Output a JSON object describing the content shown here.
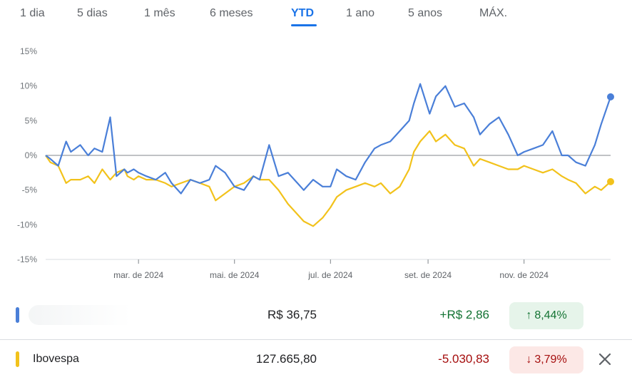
{
  "tabs": [
    {
      "label": "1 dia",
      "active": false
    },
    {
      "label": "5 dias",
      "active": false
    },
    {
      "label": "1 mês",
      "active": false
    },
    {
      "label": "6 meses",
      "active": false
    },
    {
      "label": "YTD",
      "active": true
    },
    {
      "label": "1 ano",
      "active": false
    },
    {
      "label": "5 anos",
      "active": false
    },
    {
      "label": "MÁX.",
      "active": false
    }
  ],
  "colors": {
    "series_1": "#4a7fd8",
    "series_2": "#f2c21b",
    "up": "#137333",
    "down": "#a50e0e",
    "accent": "#1a73e8"
  },
  "chart_data": {
    "type": "line",
    "ylim": [
      -15,
      15
    ],
    "y_ticks": [
      15,
      10,
      5,
      0,
      -5,
      -10,
      -15
    ],
    "y_tick_labels": [
      "15%",
      "10%",
      "5%",
      "0%",
      "-5%",
      "-10%",
      "-15%"
    ],
    "xlim": [
      "2024-01-02",
      "2024-12-26"
    ],
    "x_ticks": [
      "2024-03-01",
      "2024-05-01",
      "2024-07-01",
      "2024-09-01",
      "2024-11-01"
    ],
    "x_tick_labels": [
      "mar. de 2024",
      "mai. de 2024",
      "jul. de 2024",
      "set. de 2024",
      "nov. de 2024"
    ],
    "baseline": 0,
    "series": [
      {
        "color": "#4a7fd8",
        "x": [
          "2024-01-02",
          "2024-01-05",
          "2024-01-10",
          "2024-01-15",
          "2024-01-18",
          "2024-01-24",
          "2024-01-29",
          "2024-02-02",
          "2024-02-07",
          "2024-02-12",
          "2024-02-16",
          "2024-02-21",
          "2024-02-23",
          "2024-02-27",
          "2024-03-01",
          "2024-03-06",
          "2024-03-12",
          "2024-03-18",
          "2024-03-22",
          "2024-03-28",
          "2024-04-03",
          "2024-04-09",
          "2024-04-15",
          "2024-04-19",
          "2024-04-25",
          "2024-05-01",
          "2024-05-07",
          "2024-05-13",
          "2024-05-17",
          "2024-05-23",
          "2024-05-29",
          "2024-06-04",
          "2024-06-10",
          "2024-06-14",
          "2024-06-20",
          "2024-06-26",
          "2024-07-01",
          "2024-07-05",
          "2024-07-11",
          "2024-07-17",
          "2024-07-23",
          "2024-07-29",
          "2024-08-02",
          "2024-08-08",
          "2024-08-14",
          "2024-08-20",
          "2024-08-23",
          "2024-08-27",
          "2024-09-02",
          "2024-09-06",
          "2024-09-12",
          "2024-09-18",
          "2024-09-24",
          "2024-09-30",
          "2024-10-04",
          "2024-10-10",
          "2024-10-16",
          "2024-10-22",
          "2024-10-28",
          "2024-11-01",
          "2024-11-07",
          "2024-11-13",
          "2024-11-19",
          "2024-11-25",
          "2024-11-29",
          "2024-12-04",
          "2024-12-10",
          "2024-12-16",
          "2024-12-20",
          "2024-12-26"
        ],
        "values": [
          0,
          -0.5,
          -1.5,
          2,
          0.5,
          1.5,
          0,
          1,
          0.5,
          5.5,
          -3,
          -2,
          -2.5,
          -2,
          -2.5,
          -3,
          -3.5,
          -2.5,
          -4,
          -5.5,
          -3.5,
          -4,
          -3.5,
          -1.5,
          -2.5,
          -4.5,
          -5,
          -3,
          -3.5,
          1.5,
          -3,
          -2.5,
          -4,
          -5,
          -3.5,
          -4.5,
          -4.5,
          -2,
          -3,
          -3.5,
          -1,
          1,
          1.5,
          2,
          3.5,
          5,
          7.5,
          10.3,
          6,
          8.5,
          10,
          7,
          7.5,
          5.5,
          3,
          4.5,
          5.5,
          3,
          0,
          0.5,
          1,
          1.5,
          3.5,
          0,
          0,
          -1,
          -1.5,
          1.5,
          4.5,
          8.44
        ]
      },
      {
        "color": "#f2c21b",
        "x": [
          "2024-01-02",
          "2024-01-05",
          "2024-01-10",
          "2024-01-15",
          "2024-01-18",
          "2024-01-24",
          "2024-01-29",
          "2024-02-02",
          "2024-02-07",
          "2024-02-12",
          "2024-02-16",
          "2024-02-21",
          "2024-02-23",
          "2024-02-27",
          "2024-03-01",
          "2024-03-06",
          "2024-03-12",
          "2024-03-18",
          "2024-03-22",
          "2024-03-28",
          "2024-04-03",
          "2024-04-09",
          "2024-04-15",
          "2024-04-19",
          "2024-04-25",
          "2024-05-01",
          "2024-05-07",
          "2024-05-13",
          "2024-05-17",
          "2024-05-23",
          "2024-05-29",
          "2024-06-04",
          "2024-06-10",
          "2024-06-14",
          "2024-06-20",
          "2024-06-26",
          "2024-07-01",
          "2024-07-05",
          "2024-07-11",
          "2024-07-17",
          "2024-07-23",
          "2024-07-29",
          "2024-08-02",
          "2024-08-08",
          "2024-08-14",
          "2024-08-20",
          "2024-08-23",
          "2024-08-27",
          "2024-09-02",
          "2024-09-06",
          "2024-09-12",
          "2024-09-18",
          "2024-09-24",
          "2024-09-30",
          "2024-10-04",
          "2024-10-10",
          "2024-10-16",
          "2024-10-22",
          "2024-10-28",
          "2024-11-01",
          "2024-11-07",
          "2024-11-13",
          "2024-11-19",
          "2024-11-25",
          "2024-11-29",
          "2024-12-04",
          "2024-12-10",
          "2024-12-16",
          "2024-12-20",
          "2024-12-26"
        ],
        "values": [
          0,
          -1,
          -1.5,
          -4,
          -3.5,
          -3.5,
          -3,
          -4,
          -2,
          -3.5,
          -2.5,
          -2,
          -3,
          -3.5,
          -3,
          -3.5,
          -3.5,
          -4,
          -4.5,
          -4,
          -3.5,
          -4,
          -4.5,
          -6.5,
          -5.5,
          -4.5,
          -4,
          -3,
          -3.5,
          -3.5,
          -5,
          -7,
          -8.5,
          -9.5,
          -10.2,
          -9,
          -7.5,
          -6,
          -5,
          -4.5,
          -4,
          -4.5,
          -4,
          -5.5,
          -4.5,
          -2,
          0.5,
          2,
          3.5,
          2,
          3,
          1.5,
          1,
          -1.5,
          -0.5,
          -1,
          -1.5,
          -2,
          -2,
          -1.5,
          -2,
          -2.5,
          -2,
          -3,
          -3.5,
          -4,
          -5.5,
          -4.5,
          -5,
          -3.79
        ]
      }
    ]
  },
  "rows": [
    {
      "name": "",
      "price": "R$ 36,75",
      "change": "+R$ 2,86",
      "pct_arrow": "↑",
      "pct": "8,44%",
      "direction": "up"
    },
    {
      "name": "Ibovespa",
      "price": "127.665,80",
      "change": "-5.030,83",
      "pct_arrow": "↓",
      "pct": "3,79%",
      "direction": "down"
    }
  ]
}
